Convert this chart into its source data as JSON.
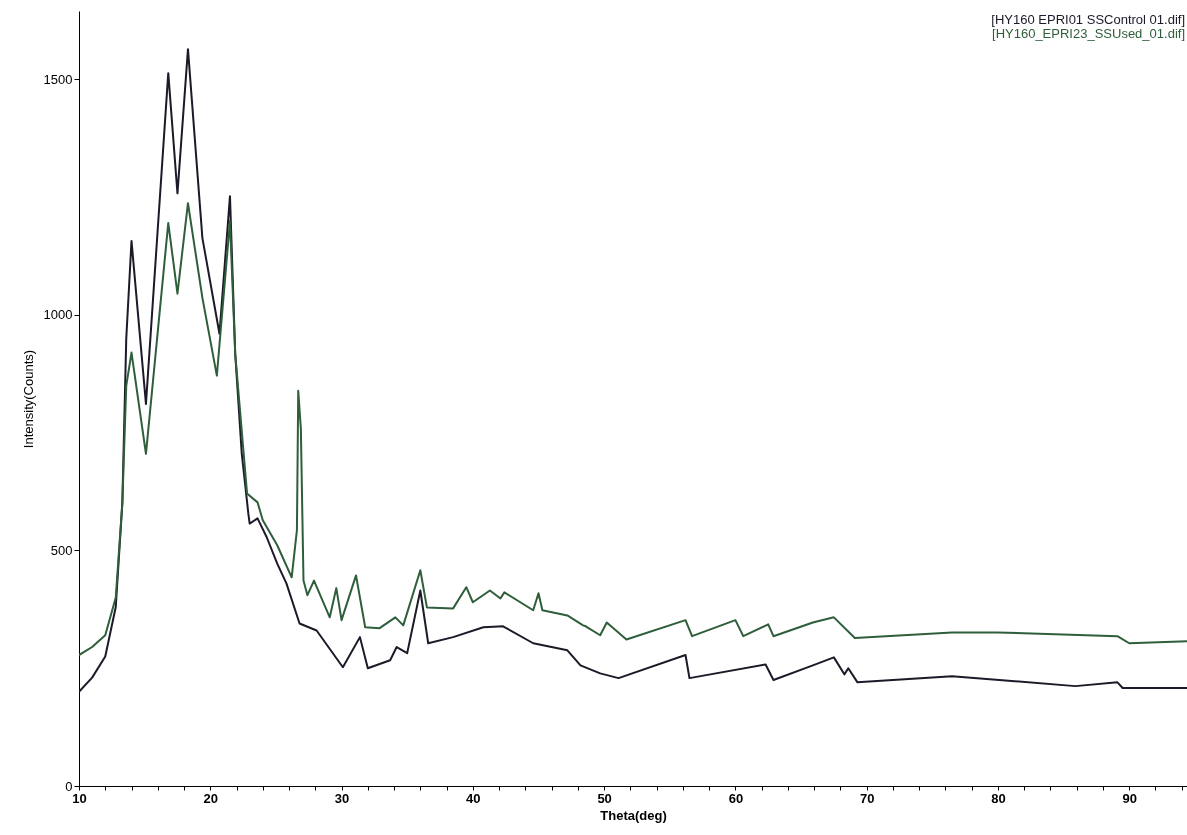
{
  "chart_data": {
    "type": "line",
    "xlabel": "Theta(deg)",
    "ylabel": "Intensity(Counts)",
    "legend": "top right",
    "grid": false,
    "xlim": [
      10,
      94.4
    ],
    "xticks": [
      10,
      {
        "value": 12,
        "label": null
      },
      {
        "value": 14,
        "label": null
      },
      {
        "value": 16,
        "label": null
      },
      {
        "value": 18,
        "label": null
      },
      20,
      {
        "value": 22,
        "label": null
      },
      {
        "value": 24,
        "label": null
      },
      {
        "value": 26,
        "label": null
      },
      {
        "value": 28,
        "label": null
      },
      30,
      {
        "value": 32,
        "label": null
      },
      {
        "value": 34,
        "label": null
      },
      {
        "value": 36,
        "label": null
      },
      {
        "value": 38,
        "label": null
      },
      40,
      {
        "value": 42,
        "label": null
      },
      {
        "value": 44,
        "label": null
      },
      {
        "value": 46,
        "label": null
      },
      {
        "value": 48,
        "label": null
      },
      50,
      {
        "value": 52,
        "label": null
      },
      {
        "value": 54,
        "label": null
      },
      {
        "value": 56,
        "label": null
      },
      {
        "value": 58,
        "label": null
      },
      60,
      {
        "value": 62,
        "label": null
      },
      {
        "value": 64,
        "label": null
      },
      {
        "value": 66,
        "label": null
      },
      {
        "value": 68,
        "label": null
      },
      70,
      {
        "value": 72,
        "label": null
      },
      {
        "value": 74,
        "label": null
      },
      {
        "value": 76,
        "label": null
      },
      {
        "value": 78,
        "label": null
      },
      80,
      {
        "value": 82,
        "label": null
      },
      {
        "value": 84,
        "label": null
      },
      {
        "value": 86,
        "label": null
      },
      {
        "value": 88,
        "label": null
      },
      90,
      {
        "value": 92,
        "label": null
      },
      {
        "value": 94,
        "label": null
      }
    ],
    "ylim": [
      0,
      1645
    ],
    "yticks": [
      0,
      500,
      1000,
      1500
    ],
    "series": [
      {
        "name": "[HY160  EPRI01  SSControl  01.dif]",
        "color": "#1c1a28",
        "x": [
          10,
          11,
          12,
          12.8,
          13.3,
          13.6,
          14.0,
          15.1,
          16.8,
          17.5,
          18.3,
          19.4,
          20.7,
          21.5,
          21.9,
          22.4,
          22.9,
          23.0,
          23.6,
          24.3,
          25.1,
          25.8,
          26.8,
          28.1,
          30.1,
          31.4,
          32.0,
          33.7,
          34.2,
          35.0,
          36.0,
          36.6,
          38.5,
          40.8,
          42.3,
          44.6,
          47.2,
          48.2,
          49.7,
          51.1,
          56.2,
          56.5,
          62.3,
          62.9,
          65.9,
          67.5,
          68.3,
          68.6,
          69.3,
          76.5,
          85.9,
          89.1,
          89.5,
          94.4
        ],
        "values": [
          200,
          230,
          275,
          380,
          600,
          950,
          1157,
          811,
          1513,
          1258,
          1564,
          1163,
          960,
          1252,
          917,
          705,
          578,
          557,
          568,
          528,
          472,
          430,
          345,
          330,
          252,
          316,
          250,
          267,
          295,
          282,
          415,
          303,
          316,
          337,
          339,
          303,
          288,
          256,
          239,
          229,
          278,
          229,
          258,
          225,
          256,
          273,
          237,
          250,
          220,
          233,
          212,
          220,
          208,
          208
        ]
      },
      {
        "name": "[HY160_EPRI23_SSUsed_01.dif]",
        "color": "#2e5e3a",
        "x": [
          10,
          11,
          12,
          12.8,
          13.3,
          13.6,
          14.0,
          15.1,
          16.8,
          17.5,
          18.3,
          19.4,
          20.5,
          21.5,
          21.9,
          22.8,
          23.6,
          24.0,
          25.1,
          26.2,
          26.6,
          26.7,
          26.9,
          27.1,
          27.4,
          27.9,
          29.1,
          29.6,
          30.0,
          31.1,
          31.8,
          32.9,
          34.1,
          34.7,
          36.0,
          36.5,
          38.5,
          39.5,
          40.0,
          41.3,
          42.1,
          42.4,
          44.6,
          45.0,
          45.3,
          47.2,
          48.4,
          48.6,
          49.7,
          50.2,
          51.7,
          56.2,
          56.7,
          60.0,
          60.6,
          62.5,
          62.9,
          65.9,
          67.5,
          69.1,
          76.5,
          79.9,
          89.1,
          90.0,
          94.4
        ],
        "values": [
          278,
          295,
          320,
          400,
          600,
          850,
          920,
          705,
          1195,
          1045,
          1237,
          1036,
          871,
          1199,
          917,
          621,
          602,
          564,
          511,
          443,
          543,
          839,
          758,
          436,
          405,
          436,
          358,
          420,
          352,
          447,
          337,
          335,
          358,
          341,
          458,
          379,
          377,
          422,
          390,
          415,
          398,
          411,
          373,
          409,
          373,
          362,
          341,
          339,
          320,
          347,
          311,
          352,
          318,
          352,
          318,
          343,
          318,
          347,
          358,
          314,
          326,
          326,
          318,
          303,
          307
        ]
      }
    ]
  }
}
